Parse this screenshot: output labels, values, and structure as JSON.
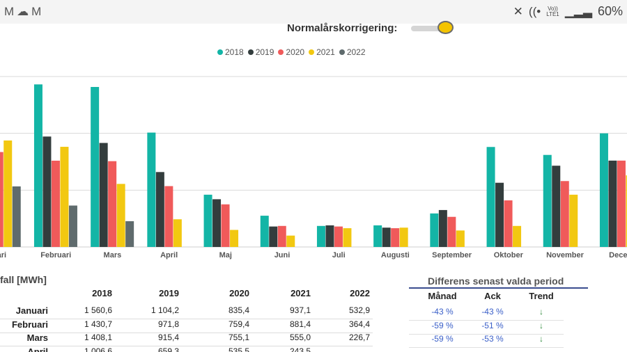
{
  "status_bar": {
    "left_icons": [
      "gmail-icon",
      "cloud-icon",
      "gmail-icon"
    ],
    "carrier_top": "Vo))",
    "carrier_bottom": "LTE1",
    "battery": "60%"
  },
  "toggle": {
    "label": "Normalårskorrigering:",
    "state": "on",
    "knob_color": "#f4c400"
  },
  "legend": [
    {
      "label": "2018",
      "color": "#13b5a6"
    },
    {
      "label": "2019",
      "color": "#333d3d"
    },
    {
      "label": "2020",
      "color": "#f05a5a"
    },
    {
      "label": "2021",
      "color": "#f2c811"
    },
    {
      "label": "2022",
      "color": "#5f6b6d"
    }
  ],
  "chart_data": {
    "type": "bar",
    "categories": [
      "Januari",
      "Februari",
      "Mars",
      "April",
      "Maj",
      "Juni",
      "Juli",
      "Augusti",
      "September",
      "Oktober",
      "November",
      "December"
    ],
    "category_labels": [
      "uari",
      "Februari",
      "Mars",
      "April",
      "Maj",
      "Juni",
      "Juli",
      "Augusti",
      "September",
      "Oktober",
      "November",
      "Decem"
    ],
    "series": [
      {
        "name": "2018",
        "color": "#13b5a6",
        "values": [
          1560.6,
          1430.7,
          1408.1,
          1006.6,
          460,
          275,
          185,
          190,
          295,
          880,
          810,
          1000
        ]
      },
      {
        "name": "2019",
        "color": "#333d3d",
        "values": [
          1104.2,
          971.8,
          915.4,
          659.3,
          420,
          180,
          190,
          170,
          325,
          565,
          715,
          760
        ]
      },
      {
        "name": "2020",
        "color": "#f05a5a",
        "values": [
          835.4,
          759.4,
          755.1,
          535.5,
          375,
          185,
          180,
          165,
          265,
          410,
          580,
          760
        ]
      },
      {
        "name": "2021",
        "color": "#f2c811",
        "values": [
          937.1,
          881.4,
          555.0,
          243.5,
          150,
          100,
          165,
          170,
          145,
          185,
          460,
          630
        ]
      },
      {
        "name": "2022",
        "color": "#5f6b6d",
        "values": [
          532.9,
          364.4,
          226.7,
          null,
          null,
          null,
          null,
          null,
          null,
          null,
          null,
          null
        ]
      }
    ],
    "ylim": [
      0,
      1500
    ],
    "gridlines": [
      500,
      1000,
      1500
    ],
    "grid": true,
    "legend_position": "top-center",
    "title": "",
    "xlabel": "",
    "ylabel": ""
  },
  "table": {
    "title": "fall [MWh]",
    "columns": [
      "2018",
      "2019",
      "2020",
      "2021",
      "2022"
    ],
    "rows": [
      {
        "label": "Januari",
        "values": [
          "1 560,6",
          "1 104,2",
          "835,4",
          "937,1",
          "532,9"
        ]
      },
      {
        "label": "Februari",
        "values": [
          "1 430,7",
          "971,8",
          "759,4",
          "881,4",
          "364,4"
        ]
      },
      {
        "label": "Mars",
        "values": [
          "1 408,1",
          "915,4",
          "755,1",
          "555,0",
          "226,7"
        ]
      },
      {
        "label": "April",
        "values": [
          "1 006,6",
          "659,3",
          "535,5",
          "243,5",
          ""
        ]
      }
    ]
  },
  "diff": {
    "title": "Differens senast valda period",
    "columns": [
      "Månad",
      "Ack",
      "Trend"
    ],
    "rows": [
      {
        "manad": "-43 %",
        "ack": "-43 %",
        "trend": "down-arrow-icon"
      },
      {
        "manad": "-59 %",
        "ack": "-51 %",
        "trend": "down-arrow-icon"
      },
      {
        "manad": "-59 %",
        "ack": "-53 %",
        "trend": "down-arrow-icon"
      }
    ],
    "trend_color": "#2e8a3a"
  }
}
